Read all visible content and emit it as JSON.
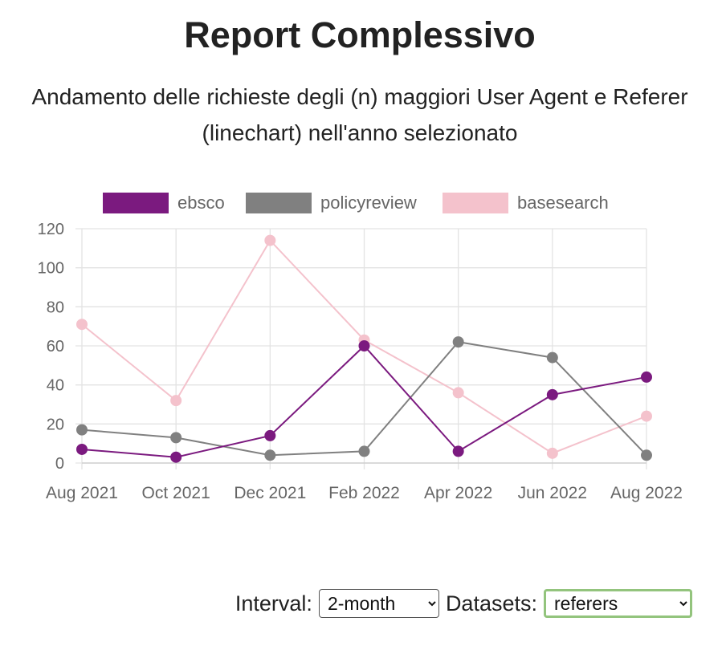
{
  "header": {
    "title": "Report Complessivo",
    "subtitle": "Andamento delle richieste degli (n) maggiori User Agent e Referer (linechart) nell'anno selezionato"
  },
  "controls": {
    "interval_label": "Interval:",
    "interval_value": "2-month",
    "datasets_label": "Datasets:",
    "datasets_value": "referers"
  },
  "chart_data": {
    "type": "line",
    "x": [
      "Aug 2021",
      "Oct 2021",
      "Dec 2021",
      "Feb 2022",
      "Apr 2022",
      "Jun 2022",
      "Aug 2022"
    ],
    "series": [
      {
        "name": "ebsco",
        "color": "#7b1a7f",
        "values": [
          7,
          3,
          14,
          60,
          6,
          35,
          44
        ]
      },
      {
        "name": "policyreview",
        "color": "#808080",
        "values": [
          17,
          13,
          4,
          6,
          62,
          54,
          4
        ]
      },
      {
        "name": "basesearch",
        "color": "#f4c2cc",
        "values": [
          71,
          32,
          114,
          63,
          36,
          5,
          24
        ]
      }
    ],
    "ylim": [
      0,
      120
    ],
    "yticks": [
      0,
      20,
      40,
      60,
      80,
      100,
      120
    ],
    "grid": true,
    "legend": "top-center"
  }
}
